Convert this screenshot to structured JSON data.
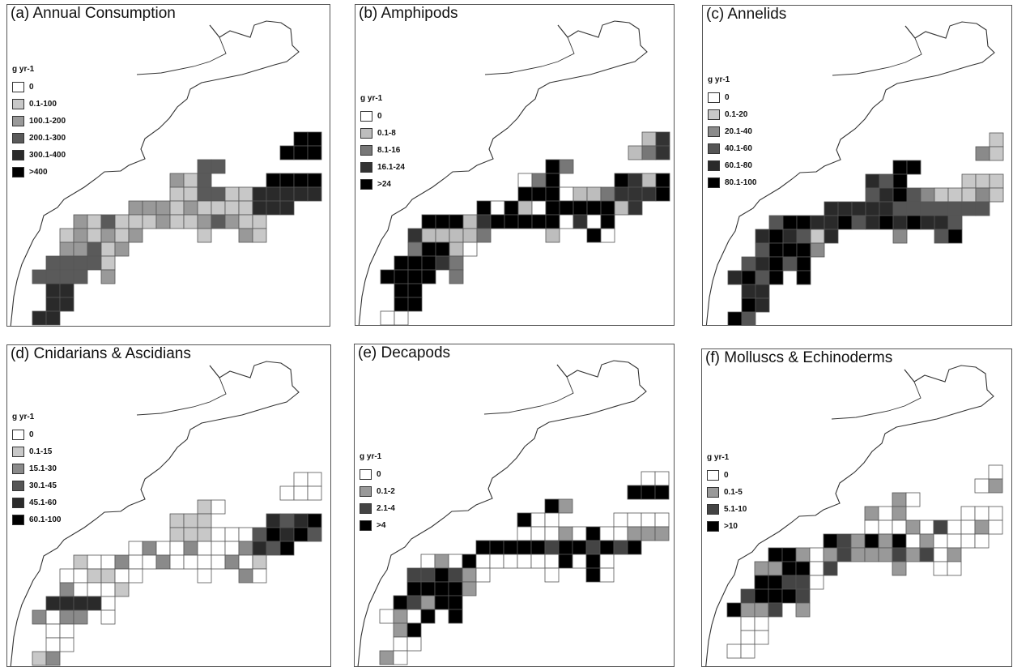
{
  "colors": {
    "cell_outline": "#555555",
    "coast": "#333333",
    "gray_light": "#c8c8c8",
    "gray_mid": "#999999",
    "gray_dark": "#555555",
    "gray_darker": "#2e2e2e",
    "black": "#000000",
    "white": "#ffffff"
  },
  "panels": [
    {
      "id": "a",
      "title": "(a) Annual Consumption",
      "unit": "g yr-1",
      "legend": [
        {
          "label": "0",
          "color": "#ffffff"
        },
        {
          "label": "0.1-100",
          "color": "#c8c8c8"
        },
        {
          "label": "100.1-200",
          "color": "#999999"
        },
        {
          "label": "200.1-300",
          "color": "#5a5a5a"
        },
        {
          "label": "300.1-400",
          "color": "#2a2a2a"
        },
        {
          "label": ">400",
          "color": "#000000"
        }
      ]
    },
    {
      "id": "b",
      "title": "(b) Amphipods",
      "unit": "g yr-1",
      "legend": [
        {
          "label": "0",
          "color": "#ffffff"
        },
        {
          "label": "0.1-8",
          "color": "#bdbdbd"
        },
        {
          "label": "8.1-16",
          "color": "#777777"
        },
        {
          "label": "16.1-24",
          "color": "#333333"
        },
        {
          "label": ">24",
          "color": "#000000"
        }
      ]
    },
    {
      "id": "c",
      "title": "(c) Annelids",
      "unit": "g yr-1",
      "legend": [
        {
          "label": "0",
          "color": "#ffffff"
        },
        {
          "label": "0.1-20",
          "color": "#c8c8c8"
        },
        {
          "label": "20.1-40",
          "color": "#8a8a8a"
        },
        {
          "label": "40.1-60",
          "color": "#555555"
        },
        {
          "label": "60.1-80",
          "color": "#2a2a2a"
        },
        {
          "label": "80.1-100",
          "color": "#000000"
        }
      ]
    },
    {
      "id": "d",
      "title": "(d) Cnidarians & Ascidians",
      "unit": "g yr-1",
      "legend": [
        {
          "label": "0",
          "color": "#ffffff"
        },
        {
          "label": "0.1-15",
          "color": "#c8c8c8"
        },
        {
          "label": "15.1-30",
          "color": "#8a8a8a"
        },
        {
          "label": "30.1-45",
          "color": "#555555"
        },
        {
          "label": "45.1-60",
          "color": "#2a2a2a"
        },
        {
          "label": "60.1-100",
          "color": "#000000"
        }
      ]
    },
    {
      "id": "e",
      "title": "(e) Decapods",
      "unit": "g yr-1",
      "legend": [
        {
          "label": "0",
          "color": "#ffffff"
        },
        {
          "label": "0.1-2",
          "color": "#999999"
        },
        {
          "label": "2.1-4",
          "color": "#444444"
        },
        {
          "label": ">4",
          "color": "#000000"
        }
      ]
    },
    {
      "id": "f",
      "title": "(f) Molluscs & Echinoderms",
      "unit": "g yr-1",
      "legend": [
        {
          "label": "0",
          "color": "#ffffff"
        },
        {
          "label": "0.1-5",
          "color": "#999999"
        },
        {
          "label": "5.1-10",
          "color": "#444444"
        },
        {
          "label": ">10",
          "color": "#000000"
        }
      ]
    }
  ]
}
